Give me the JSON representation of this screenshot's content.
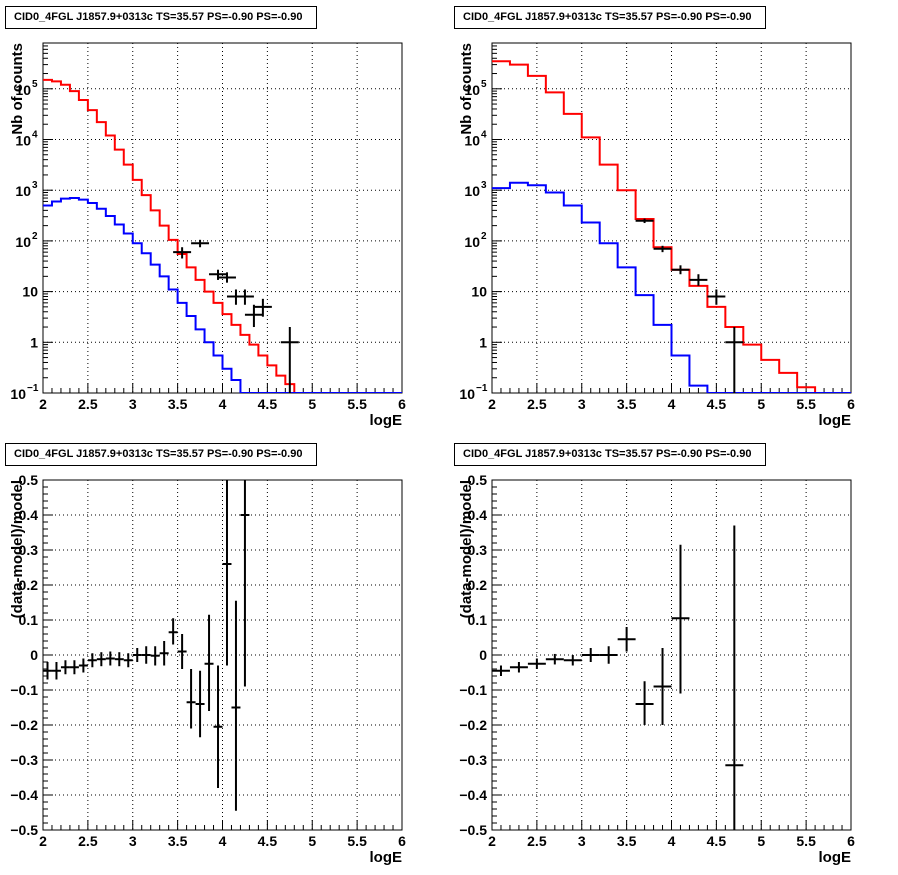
{
  "chart_data": [
    {
      "type": "line",
      "title": "CID0_4FGL J1857.9+0313c TS=35.57 PS=-0.90 PS=-0.90",
      "xlabel": "logE",
      "ylabel": "Nb of counts",
      "xlim": [
        2,
        6
      ],
      "ylim": [
        0.1,
        800000
      ],
      "ylog": true,
      "grid": true,
      "xticks": [
        "2",
        "2.5",
        "3",
        "3.5",
        "4",
        "4.5",
        "5",
        "5.5",
        "6"
      ],
      "yticks": [
        {
          "v": 0.1,
          "m": "10",
          "e": "−1"
        },
        {
          "v": 1,
          "m": "1",
          "e": ""
        },
        {
          "v": 10,
          "m": "10",
          "e": ""
        },
        {
          "v": 100,
          "m": "10",
          "e": "2"
        },
        {
          "v": 1000,
          "m": "10",
          "e": "3"
        },
        {
          "v": 10000,
          "m": "10",
          "e": "4"
        },
        {
          "v": 100000,
          "m": "10",
          "e": "5"
        }
      ],
      "series": [
        {
          "color": "#ff0000",
          "kind": "hist",
          "edges": [
            2,
            2.1,
            2.2,
            2.3,
            2.4,
            2.5,
            2.6,
            2.7,
            2.8,
            2.9,
            3.0,
            3.1,
            3.2,
            3.3,
            3.4,
            3.5,
            3.6,
            3.7,
            3.8,
            3.9,
            4.0,
            4.1,
            4.2,
            4.3,
            4.4,
            4.5,
            4.6,
            4.7,
            4.8,
            4.9,
            5.0,
            5.1,
            5.2,
            5.3,
            5.4,
            5.5,
            5.6,
            5.7,
            5.8,
            5.9,
            6.0
          ],
          "values": [
            150000,
            140000,
            120000,
            90000,
            60000,
            38000,
            22000,
            12000,
            6300,
            3200,
            1600,
            800,
            400,
            200,
            105,
            55,
            30,
            17,
            10,
            6,
            3.6,
            2.2,
            1.4,
            0.9,
            0.55,
            0.35,
            0.22,
            0.15,
            0.1,
            0.1,
            0.1,
            0.1,
            0.1,
            0.1,
            0.1,
            0.1,
            0.1,
            0.1,
            0.1,
            0.1
          ]
        },
        {
          "color": "#0000ff",
          "kind": "hist",
          "edges": [
            2,
            2.1,
            2.2,
            2.3,
            2.4,
            2.5,
            2.6,
            2.7,
            2.8,
            2.9,
            3.0,
            3.1,
            3.2,
            3.3,
            3.4,
            3.5,
            3.6,
            3.7,
            3.8,
            3.9,
            4.0,
            4.1,
            4.2,
            4.3,
            4.4,
            4.5,
            4.6,
            4.7,
            4.8,
            4.9,
            5.0,
            5.1,
            5.2,
            5.3,
            5.4,
            5.5,
            5.6,
            5.7,
            5.8,
            5.9,
            6.0
          ],
          "values": [
            500,
            600,
            680,
            700,
            650,
            560,
            430,
            310,
            210,
            140,
            90,
            57,
            34,
            20,
            11,
            6,
            3.3,
            1.8,
            1.0,
            0.55,
            0.3,
            0.18,
            0.1,
            0.1,
            0.1,
            0.1,
            0.1,
            0.1,
            0.1,
            0.1,
            0.1,
            0.1,
            0.1,
            0.1,
            0.1,
            0.1,
            0.1,
            0.1,
            0.1,
            0.1
          ]
        },
        {
          "color": "#000000",
          "kind": "points",
          "points": [
            {
              "x": 3.55,
              "y": 60,
              "lo": 45,
              "hi": 75
            },
            {
              "x": 3.75,
              "y": 90,
              "lo": 75,
              "hi": 105
            },
            {
              "x": 3.95,
              "y": 22,
              "lo": 17,
              "hi": 27
            },
            {
              "x": 4.05,
              "y": 19,
              "lo": 15,
              "hi": 24
            },
            {
              "x": 4.15,
              "y": 8,
              "lo": 5.5,
              "hi": 11
            },
            {
              "x": 4.25,
              "y": 8,
              "lo": 5.5,
              "hi": 11
            },
            {
              "x": 4.35,
              "y": 3.5,
              "lo": 2,
              "hi": 5.5
            },
            {
              "x": 4.45,
              "y": 5,
              "lo": 3.2,
              "hi": 7.2
            },
            {
              "x": 4.75,
              "y": 1,
              "lo": 0.1,
              "hi": 2
            }
          ]
        }
      ]
    },
    {
      "type": "line",
      "title": "CID0_4FGL J1857.9+0313c TS=35.57 PS=-0.90 PS=-0.90",
      "xlabel": "logE",
      "ylabel": "Nb of counts",
      "xlim": [
        2,
        6
      ],
      "ylim": [
        0.1,
        800000
      ],
      "ylog": true,
      "grid": true,
      "xticks": [
        "2",
        "2.5",
        "3",
        "3.5",
        "4",
        "4.5",
        "5",
        "5.5",
        "6"
      ],
      "yticks": [
        {
          "v": 0.1,
          "m": "10",
          "e": "−1"
        },
        {
          "v": 1,
          "m": "1",
          "e": ""
        },
        {
          "v": 10,
          "m": "10",
          "e": ""
        },
        {
          "v": 100,
          "m": "10",
          "e": "2"
        },
        {
          "v": 1000,
          "m": "10",
          "e": "3"
        },
        {
          "v": 10000,
          "m": "10",
          "e": "4"
        },
        {
          "v": 100000,
          "m": "10",
          "e": "5"
        }
      ],
      "series": [
        {
          "color": "#ff0000",
          "kind": "hist",
          "edges": [
            2,
            2.2,
            2.4,
            2.6,
            2.8,
            3.0,
            3.2,
            3.4,
            3.6,
            3.8,
            4.0,
            4.2,
            4.4,
            4.6,
            4.8,
            5.0,
            5.2,
            5.4,
            5.6,
            5.8,
            6.0
          ],
          "values": [
            350000,
            300000,
            180000,
            85000,
            32000,
            11000,
            3200,
            1000,
            270,
            75,
            27,
            13,
            5,
            2,
            0.9,
            0.45,
            0.25,
            0.13,
            0.1,
            0.1
          ]
        },
        {
          "color": "#0000ff",
          "kind": "hist",
          "edges": [
            2,
            2.2,
            2.4,
            2.6,
            2.8,
            3.0,
            3.2,
            3.4,
            3.6,
            3.8,
            4.0,
            4.2,
            4.4,
            4.6,
            4.8,
            5.0,
            5.2,
            5.4,
            5.6,
            5.8,
            6.0
          ],
          "values": [
            1100,
            1400,
            1250,
            900,
            500,
            230,
            90,
            30,
            8.5,
            2.2,
            0.55,
            0.14,
            0.1,
            0.1,
            0.1,
            0.1,
            0.1,
            0.1,
            0.1,
            0.1
          ]
        },
        {
          "color": "#000000",
          "kind": "points",
          "points": [
            {
              "x": 3.7,
              "y": 250,
              "lo": 225,
              "hi": 275
            },
            {
              "x": 3.9,
              "y": 70,
              "lo": 60,
              "hi": 80
            },
            {
              "x": 4.1,
              "y": 27,
              "lo": 22,
              "hi": 33
            },
            {
              "x": 4.3,
              "y": 17,
              "lo": 13,
              "hi": 22
            },
            {
              "x": 4.5,
              "y": 8,
              "lo": 5.5,
              "hi": 11
            },
            {
              "x": 4.7,
              "y": 1,
              "lo": 0.1,
              "hi": 2
            }
          ]
        }
      ]
    },
    {
      "type": "scatter",
      "title": "CID0_4FGL J1857.9+0313c TS=35.57 PS=-0.90 PS=-0.90",
      "xlabel": "logE",
      "ylabel": "(data-model)/model",
      "xlim": [
        2,
        6
      ],
      "ylim": [
        -0.5,
        0.5
      ],
      "ylog": false,
      "grid": true,
      "xticks": [
        "2",
        "2.5",
        "3",
        "3.5",
        "4",
        "4.5",
        "5",
        "5.5",
        "6"
      ],
      "yticks": [
        {
          "v": -0.5,
          "m": "−0.5",
          "e": ""
        },
        {
          "v": -0.4,
          "m": "−0.4",
          "e": ""
        },
        {
          "v": -0.3,
          "m": "−0.3",
          "e": ""
        },
        {
          "v": -0.2,
          "m": "−0.2",
          "e": ""
        },
        {
          "v": -0.1,
          "m": "−0.1",
          "e": ""
        },
        {
          "v": 0,
          "m": "0",
          "e": ""
        },
        {
          "v": 0.1,
          "m": "0.1",
          "e": ""
        },
        {
          "v": 0.2,
          "m": "0.2",
          "e": ""
        },
        {
          "v": 0.3,
          "m": "0.3",
          "e": ""
        },
        {
          "v": 0.4,
          "m": "0.4",
          "e": ""
        },
        {
          "v": 0.5,
          "m": "0.5",
          "e": ""
        }
      ],
      "series": [
        {
          "color": "#000000",
          "kind": "points",
          "hw": 0.05,
          "points": [
            {
              "x": 2.05,
              "y": -0.045,
              "lo": -0.07,
              "hi": -0.02
            },
            {
              "x": 2.15,
              "y": -0.045,
              "lo": -0.07,
              "hi": -0.02
            },
            {
              "x": 2.25,
              "y": -0.035,
              "lo": -0.055,
              "hi": -0.015
            },
            {
              "x": 2.35,
              "y": -0.035,
              "lo": -0.055,
              "hi": -0.015
            },
            {
              "x": 2.45,
              "y": -0.03,
              "lo": -0.05,
              "hi": -0.01
            },
            {
              "x": 2.55,
              "y": -0.015,
              "lo": -0.035,
              "hi": 0.005
            },
            {
              "x": 2.65,
              "y": -0.012,
              "lo": -0.032,
              "hi": 0.008
            },
            {
              "x": 2.75,
              "y": -0.01,
              "lo": -0.03,
              "hi": 0.01
            },
            {
              "x": 2.85,
              "y": -0.012,
              "lo": -0.032,
              "hi": 0.008
            },
            {
              "x": 2.95,
              "y": -0.015,
              "lo": -0.035,
              "hi": 0.005
            },
            {
              "x": 3.05,
              "y": 0.0,
              "lo": -0.02,
              "hi": 0.02
            },
            {
              "x": 3.15,
              "y": 0.0,
              "lo": -0.025,
              "hi": 0.025
            },
            {
              "x": 3.25,
              "y": -0.002,
              "lo": -0.03,
              "hi": 0.025
            },
            {
              "x": 3.35,
              "y": 0.005,
              "lo": -0.03,
              "hi": 0.04
            },
            {
              "x": 3.45,
              "y": 0.065,
              "lo": 0.03,
              "hi": 0.105
            },
            {
              "x": 3.55,
              "y": 0.01,
              "lo": -0.04,
              "hi": 0.06
            },
            {
              "x": 3.65,
              "y": -0.135,
              "lo": -0.21,
              "hi": -0.04
            },
            {
              "x": 3.75,
              "y": -0.14,
              "lo": -0.235,
              "hi": -0.045
            },
            {
              "x": 3.85,
              "y": -0.025,
              "lo": -0.16,
              "hi": 0.115
            },
            {
              "x": 3.95,
              "y": -0.205,
              "lo": -0.38,
              "hi": -0.03
            },
            {
              "x": 4.05,
              "y": 0.26,
              "lo": -0.03,
              "hi": 0.5
            },
            {
              "x": 4.15,
              "y": -0.15,
              "lo": -0.445,
              "hi": 0.155
            },
            {
              "x": 4.25,
              "y": 0.4,
              "lo": -0.09,
              "hi": 0.5
            }
          ]
        }
      ]
    },
    {
      "type": "scatter",
      "title": "CID0_4FGL J1857.9+0313c TS=35.57 PS=-0.90 PS=-0.90",
      "xlabel": "logE",
      "ylabel": "(data-model)/model",
      "xlim": [
        2,
        6
      ],
      "ylim": [
        -0.5,
        0.5
      ],
      "ylog": false,
      "grid": true,
      "xticks": [
        "2",
        "2.5",
        "3",
        "3.5",
        "4",
        "4.5",
        "5",
        "5.5",
        "6"
      ],
      "yticks": [
        {
          "v": -0.5,
          "m": "−0.5",
          "e": ""
        },
        {
          "v": -0.4,
          "m": "−0.4",
          "e": ""
        },
        {
          "v": -0.3,
          "m": "−0.3",
          "e": ""
        },
        {
          "v": -0.2,
          "m": "−0.2",
          "e": ""
        },
        {
          "v": -0.1,
          "m": "−0.1",
          "e": ""
        },
        {
          "v": 0,
          "m": "0",
          "e": ""
        },
        {
          "v": 0.1,
          "m": "0.1",
          "e": ""
        },
        {
          "v": 0.2,
          "m": "0.2",
          "e": ""
        },
        {
          "v": 0.3,
          "m": "0.3",
          "e": ""
        },
        {
          "v": 0.4,
          "m": "0.4",
          "e": ""
        },
        {
          "v": 0.5,
          "m": "0.5",
          "e": ""
        }
      ],
      "series": [
        {
          "color": "#000000",
          "kind": "points",
          "hw": 0.1,
          "points": [
            {
              "x": 2.1,
              "y": -0.045,
              "lo": -0.06,
              "hi": -0.03
            },
            {
              "x": 2.3,
              "y": -0.035,
              "lo": -0.05,
              "hi": -0.02
            },
            {
              "x": 2.5,
              "y": -0.025,
              "lo": -0.04,
              "hi": -0.01
            },
            {
              "x": 2.7,
              "y": -0.012,
              "lo": -0.027,
              "hi": 0.003
            },
            {
              "x": 2.9,
              "y": -0.015,
              "lo": -0.03,
              "hi": 0.0
            },
            {
              "x": 3.1,
              "y": 0.0,
              "lo": -0.02,
              "hi": 0.02
            },
            {
              "x": 3.3,
              "y": 0.0,
              "lo": -0.025,
              "hi": 0.025
            },
            {
              "x": 3.5,
              "y": 0.045,
              "lo": 0.01,
              "hi": 0.08
            },
            {
              "x": 3.7,
              "y": -0.14,
              "lo": -0.2,
              "hi": -0.075
            },
            {
              "x": 3.9,
              "y": -0.09,
              "lo": -0.2,
              "hi": 0.02
            },
            {
              "x": 4.1,
              "y": 0.105,
              "lo": -0.11,
              "hi": 0.315
            },
            {
              "x": 4.7,
              "y": -0.315,
              "lo": -0.5,
              "hi": 0.37
            }
          ]
        }
      ]
    }
  ]
}
